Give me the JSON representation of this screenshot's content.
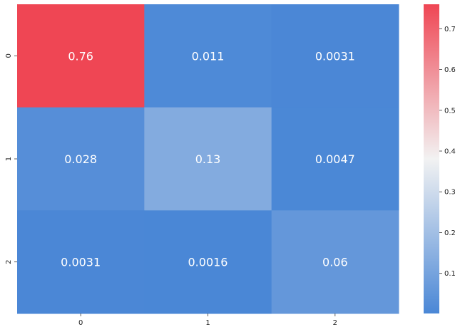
{
  "chart_data": {
    "type": "heatmap",
    "x_categories": [
      "0",
      "1",
      "2"
    ],
    "y_categories": [
      "0",
      "1",
      "2"
    ],
    "values": [
      [
        0.76,
        0.011,
        0.0031
      ],
      [
        0.028,
        0.13,
        0.0047
      ],
      [
        0.0031,
        0.0016,
        0.06
      ]
    ],
    "value_labels": [
      [
        "0.76",
        "0.011",
        "0.0031"
      ],
      [
        "0.028",
        "0.13",
        "0.0047"
      ],
      [
        "0.0031",
        "0.0016",
        "0.06"
      ]
    ],
    "colorbar": {
      "vmin": 0.0016,
      "vmax": 0.76,
      "ticks": [
        0.1,
        0.2,
        0.3,
        0.4,
        0.5,
        0.6,
        0.7
      ],
      "tick_labels": [
        "0.1",
        "0.2",
        "0.3",
        "0.4",
        "0.5",
        "0.6",
        "0.7"
      ]
    },
    "colors": {
      "low": "#4a87d6",
      "mid": "#f2f2f2",
      "high": "#ef4654"
    },
    "title": "",
    "xlabel": "",
    "ylabel": "",
    "legend": "colorbar-right",
    "grid": false
  }
}
